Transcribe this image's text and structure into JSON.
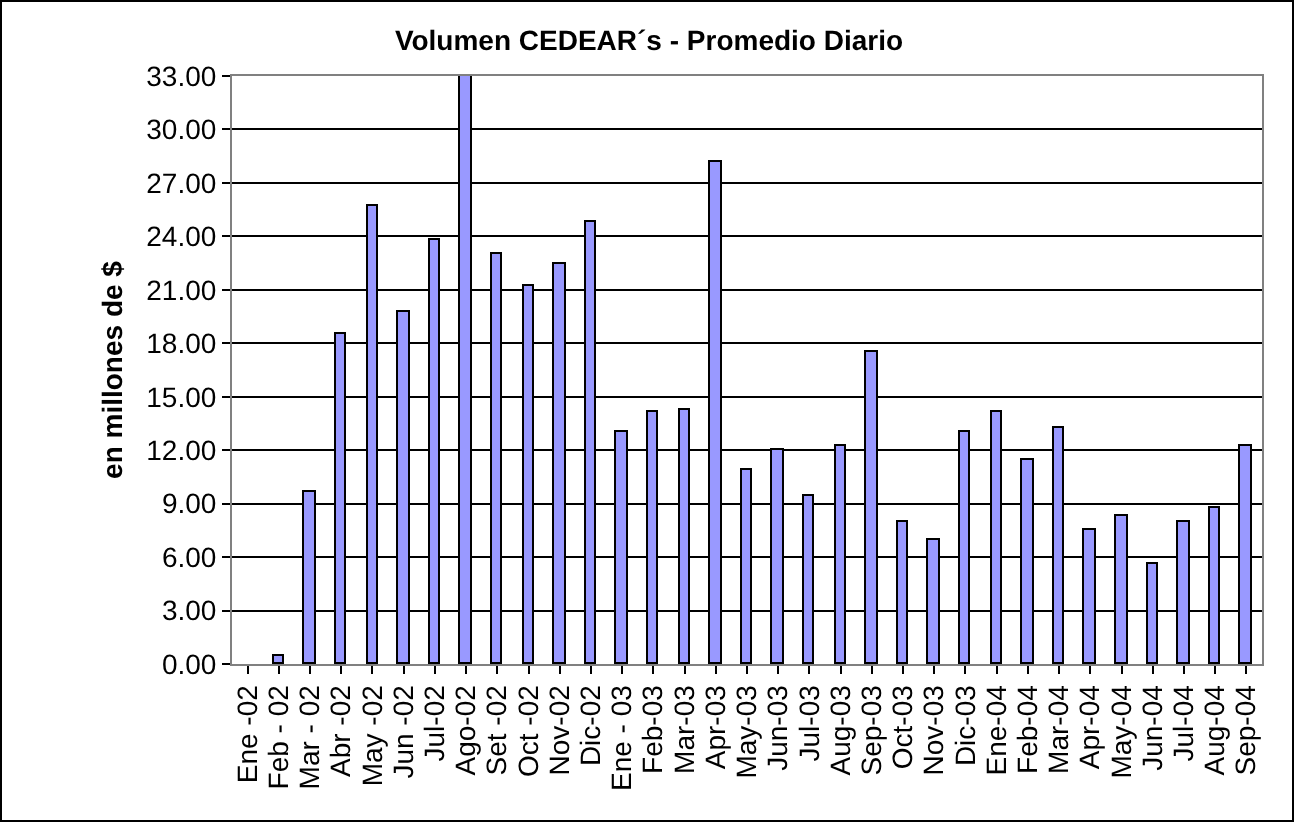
{
  "chart_data": {
    "type": "bar",
    "title": "Volumen CEDEAR´s - Promedio Diario",
    "ylabel": "en millones de $",
    "categories": [
      "Ene -02",
      "Feb - 02",
      "Mar - 02",
      "Abr -02",
      "May -02",
      "Jun -02",
      "Jul-02",
      "Ago-02",
      "Set -02",
      "Oct -02",
      "Nov-02",
      "Dic-02",
      "Ene - 03",
      "Feb-03",
      "Mar-03",
      "Apr-03",
      "May-03",
      "Jun-03",
      "Jul-03",
      "Aug-03",
      "Sep-03",
      "Oct-03",
      "Nov-03",
      "Dic-03",
      "Ene-04",
      "Feb-04",
      "Mar-04",
      "Apr-04",
      "May-04",
      "Jun-04",
      "Jul-04",
      "Aug-04",
      "Sep-04"
    ],
    "values": [
      null,
      0.4,
      9.6,
      18.5,
      25.7,
      19.8,
      23.8,
      33.0,
      23.0,
      21.2,
      22.4,
      24.8,
      13.0,
      14.1,
      14.3,
      28.2,
      10.9,
      12.0,
      9.4,
      12.2,
      17.5,
      8.0,
      7.0,
      13.0,
      14.1,
      11.5,
      13.3,
      7.5,
      8.3,
      5.6,
      8.0,
      8.8,
      12.2
    ],
    "color": "#9999ff",
    "ylim": [
      0,
      33
    ],
    "yticks": [
      {
        "value": 0,
        "label": "0.00"
      },
      {
        "value": 3,
        "label": "3.00"
      },
      {
        "value": 6,
        "label": "6.00"
      },
      {
        "value": 9,
        "label": "9.00"
      },
      {
        "value": 12,
        "label": "12.00"
      },
      {
        "value": 15,
        "label": "15.00"
      },
      {
        "value": 18,
        "label": "18.00"
      },
      {
        "value": 21,
        "label": "21.00"
      },
      {
        "value": 24,
        "label": "24.00"
      },
      {
        "value": 27,
        "label": "27.00"
      },
      {
        "value": 30,
        "label": "30.00"
      },
      {
        "value": 33,
        "label": "33.00"
      }
    ],
    "grid": "y"
  }
}
